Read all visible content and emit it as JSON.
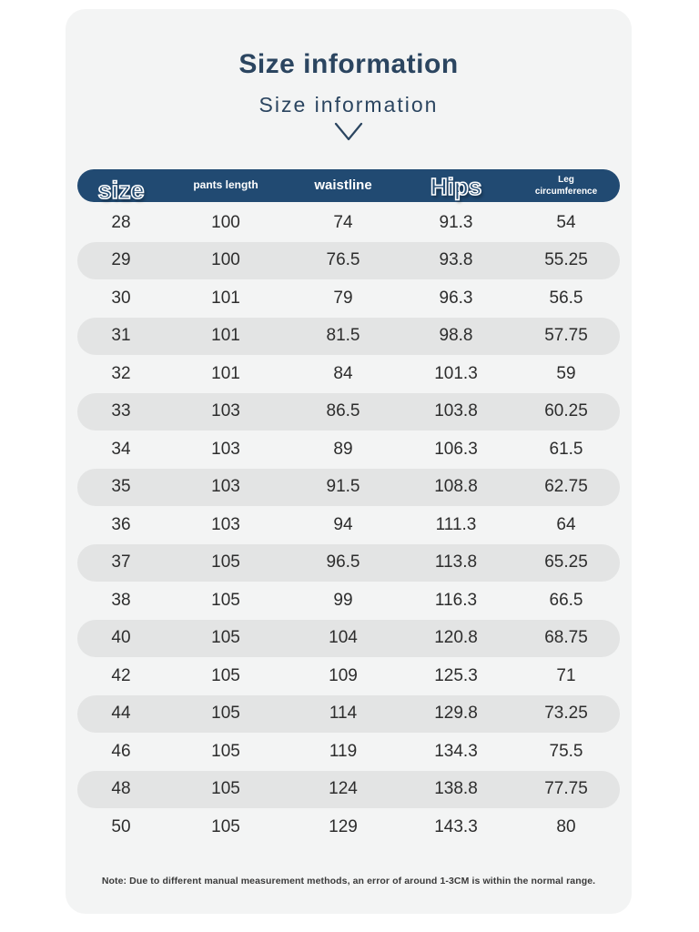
{
  "header": {
    "title": "Size information",
    "subtitle": "Size information"
  },
  "table": {
    "columns": [
      "size",
      "pants length",
      "waistline",
      "Hips",
      "Leg circumference"
    ],
    "rows": [
      [
        "28",
        "100",
        "74",
        "91.3",
        "54"
      ],
      [
        "29",
        "100",
        "76.5",
        "93.8",
        "55.25"
      ],
      [
        "30",
        "101",
        "79",
        "96.3",
        "56.5"
      ],
      [
        "31",
        "101",
        "81.5",
        "98.8",
        "57.75"
      ],
      [
        "32",
        "101",
        "84",
        "101.3",
        "59"
      ],
      [
        "33",
        "103",
        "86.5",
        "103.8",
        "60.25"
      ],
      [
        "34",
        "103",
        "89",
        "106.3",
        "61.5"
      ],
      [
        "35",
        "103",
        "91.5",
        "108.8",
        "62.75"
      ],
      [
        "36",
        "103",
        "94",
        "111.3",
        "64"
      ],
      [
        "37",
        "105",
        "96.5",
        "113.8",
        "65.25"
      ],
      [
        "38",
        "105",
        "99",
        "116.3",
        "66.5"
      ],
      [
        "40",
        "105",
        "104",
        "120.8",
        "68.75"
      ],
      [
        "42",
        "105",
        "109",
        "125.3",
        "71"
      ],
      [
        "44",
        "105",
        "114",
        "129.8",
        "73.25"
      ],
      [
        "46",
        "105",
        "119",
        "134.3",
        "75.5"
      ],
      [
        "48",
        "105",
        "124",
        "138.8",
        "77.75"
      ],
      [
        "50",
        "105",
        "129",
        "143.3",
        "80"
      ]
    ]
  },
  "note": "Note: Due to different manual measurement methods, an error of around 1-3CM is within the normal range.",
  "colors": {
    "header_bg": "#214a72",
    "panel_bg": "#f3f4f4",
    "alt_row": "#e3e4e4",
    "title_color": "#2b4560",
    "body_text": "#2d2d2d"
  }
}
